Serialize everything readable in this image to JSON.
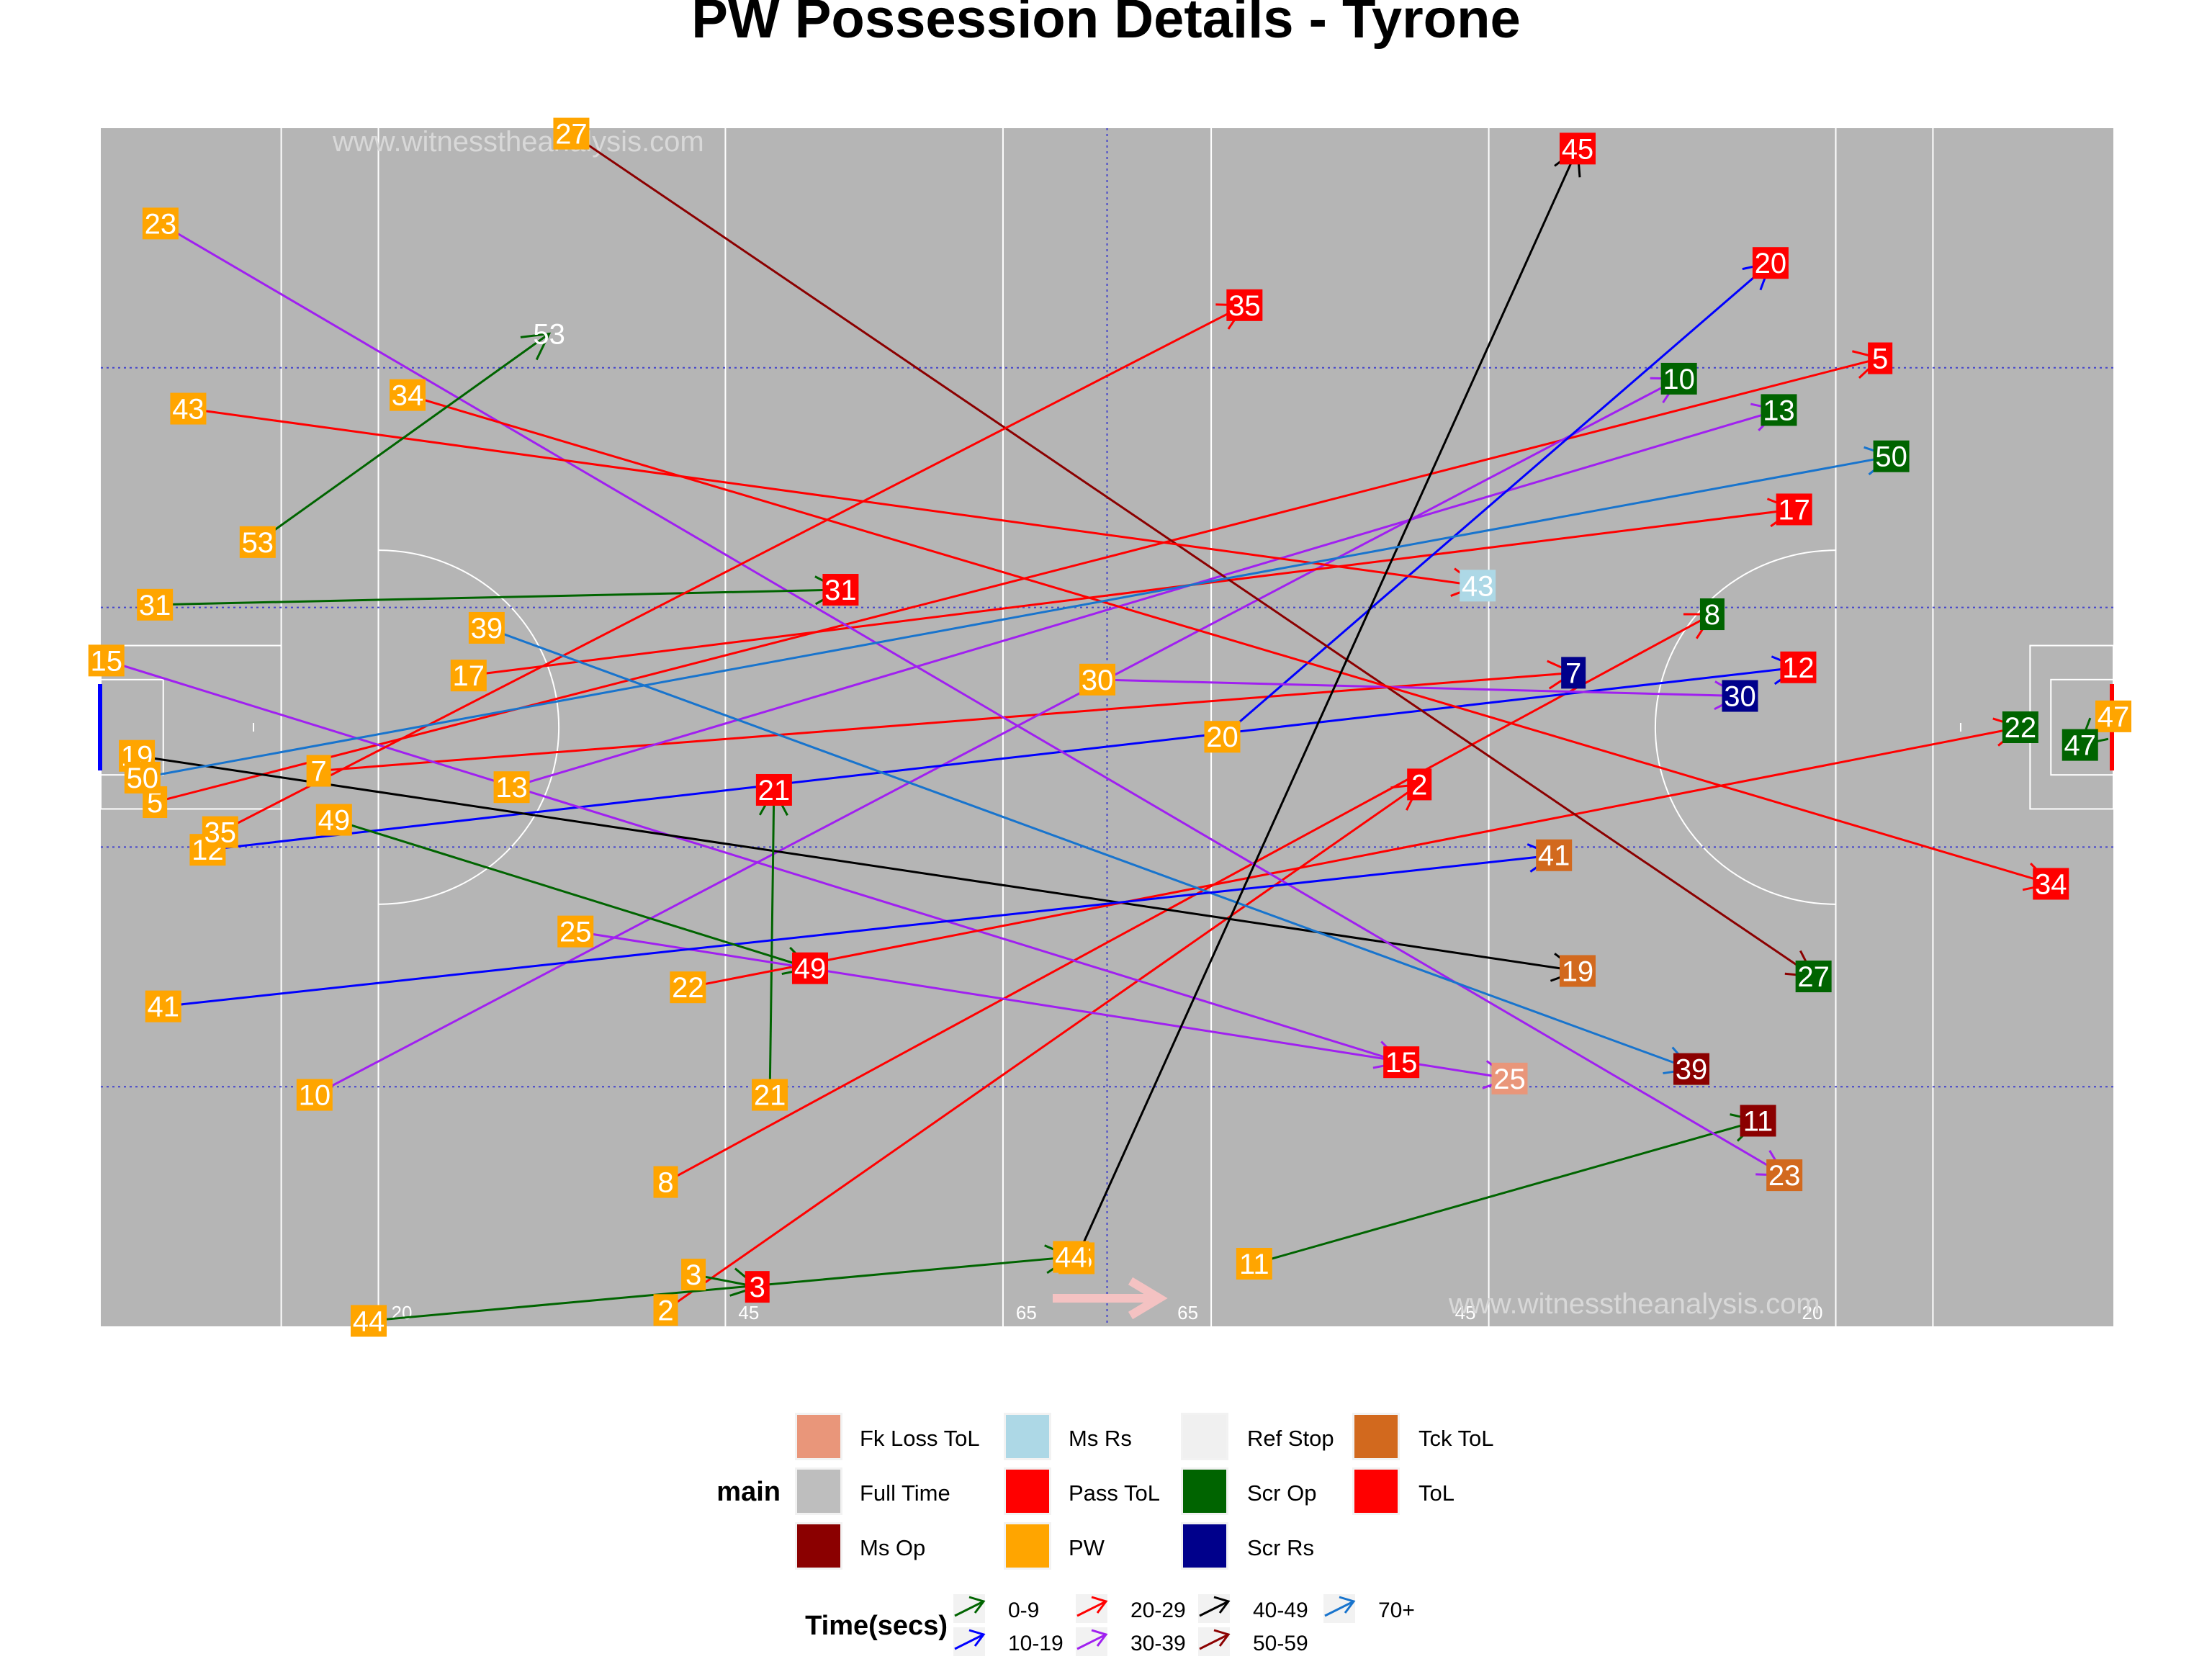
{
  "chart_data": {
    "type": "scatter",
    "title": "PW Possession Details - Tyrone",
    "watermark": "www.witnesstheanalysis.com",
    "pitch": {
      "xlim": [
        0,
        145
      ],
      "ylim": [
        0,
        88
      ],
      "line_labels": [
        "20",
        "45",
        "65",
        "65",
        "45",
        "20"
      ],
      "grid": true
    },
    "outcome_colors": {
      "Fk Loss ToL": "#E9967A",
      "Full Time": "#BEBEBE",
      "Ms Op": "#8B0000",
      "Ms Rs": "#ADD8E6",
      "Pass ToL": "#FF0000",
      "PW": "#FFA500",
      "Ref Stop": "#F0F0F0",
      "Scr Op": "#006400",
      "Scr Rs": "#00008B",
      "Tck ToL": "#D2691E",
      "ToL": "#FF0000"
    },
    "time_colors": {
      "0-9": "#006400",
      "10-19": "#0000FF",
      "20-29": "#FF0000",
      "30-39": "#A020F0",
      "40-49": "#000000",
      "50-59": "#8B0000",
      "70+": "#1874CD"
    },
    "legend_main": {
      "title": "main",
      "entries": [
        "Fk Loss ToL",
        "Full Time",
        "Ms Op",
        "Ms Rs",
        "Pass ToL",
        "PW",
        "Ref Stop",
        "Scr Op",
        "Scr Rs",
        "Tck ToL",
        "ToL"
      ]
    },
    "legend_time": {
      "title": "Time(secs)",
      "entries": [
        "0-9",
        "10-19",
        "20-29",
        "30-39",
        "40-49",
        "50-59",
        "70+"
      ]
    },
    "possessions": [
      {
        "id": "2",
        "start": [
          40.7,
          1.2
        ],
        "end": [
          95.0,
          39.8
        ],
        "time": "20-29",
        "outcome": "Pass ToL"
      },
      {
        "id": "3",
        "start": [
          42.7,
          3.8
        ],
        "end": [
          47.3,
          2.9
        ],
        "time": "0-9",
        "outcome": "ToL"
      },
      {
        "id": "5",
        "start": [
          3.9,
          38.5
        ],
        "end": [
          128.2,
          71.1
        ],
        "time": "20-29",
        "outcome": "Pass ToL"
      },
      {
        "id": "7",
        "start": [
          15.7,
          40.8
        ],
        "end": [
          106.1,
          48.0
        ],
        "time": "20-29",
        "outcome": "Scr Rs"
      },
      {
        "id": "8",
        "start": [
          40.7,
          10.6
        ],
        "end": [
          116.1,
          52.3
        ],
        "time": "20-29",
        "outcome": "Scr Op"
      },
      {
        "id": "10",
        "start": [
          15.4,
          17.0
        ],
        "end": [
          113.7,
          69.6
        ],
        "time": "30-39",
        "outcome": "Scr Op"
      },
      {
        "id": "11",
        "start": [
          83.1,
          4.6
        ],
        "end": [
          119.4,
          15.1
        ],
        "time": "0-9",
        "outcome": "Ms Op"
      },
      {
        "id": "12",
        "start": [
          7.7,
          35.0
        ],
        "end": [
          122.3,
          48.4
        ],
        "time": "10-19",
        "outcome": "ToL"
      },
      {
        "id": "13",
        "start": [
          29.6,
          39.6
        ],
        "end": [
          120.9,
          67.3
        ],
        "time": "30-39",
        "outcome": "Scr Op"
      },
      {
        "id": "15",
        "start": [
          0.4,
          48.9
        ],
        "end": [
          93.7,
          19.4
        ],
        "time": "30-39",
        "outcome": "ToL"
      },
      {
        "id": "17",
        "start": [
          26.5,
          47.8
        ],
        "end": [
          122.0,
          60.0
        ],
        "time": "20-29",
        "outcome": "Pass ToL"
      },
      {
        "id": "19",
        "start": [
          2.6,
          41.9
        ],
        "end": [
          106.4,
          26.1
        ],
        "time": "40-49",
        "outcome": "Tck ToL"
      },
      {
        "id": "20",
        "start": [
          80.8,
          43.3
        ],
        "end": [
          120.3,
          78.1
        ],
        "time": "10-19",
        "outcome": "Pass ToL"
      },
      {
        "id": "21",
        "start": [
          48.2,
          17.0
        ],
        "end": [
          48.5,
          39.4
        ],
        "time": "0-9",
        "outcome": "ToL"
      },
      {
        "id": "22",
        "start": [
          42.3,
          24.9
        ],
        "end": [
          138.3,
          44.0
        ],
        "time": "20-29",
        "outcome": "Scr Op"
      },
      {
        "id": "23",
        "start": [
          4.3,
          81.0
        ],
        "end": [
          121.3,
          11.1
        ],
        "time": "30-39",
        "outcome": "Tck ToL"
      },
      {
        "id": "25",
        "start": [
          34.2,
          29.0
        ],
        "end": [
          101.5,
          18.2
        ],
        "time": "30-39",
        "outcome": "Fk Loss ToL"
      },
      {
        "id": "27",
        "start": [
          33.9,
          87.6
        ],
        "end": [
          123.4,
          25.7
        ],
        "time": "50-59",
        "outcome": "Scr Op"
      },
      {
        "id": "30",
        "start": [
          71.8,
          47.5
        ],
        "end": [
          118.1,
          46.3
        ],
        "time": "30-39",
        "outcome": "Scr Rs"
      },
      {
        "id": "31",
        "start": [
          3.9,
          53.0
        ],
        "end": [
          53.3,
          54.1
        ],
        "time": "0-9",
        "outcome": "ToL"
      },
      {
        "id": "34",
        "start": [
          22.1,
          68.4
        ],
        "end": [
          140.5,
          32.5
        ],
        "time": "20-29",
        "outcome": "ToL"
      },
      {
        "id": "35",
        "start": [
          8.6,
          36.3
        ],
        "end": [
          82.4,
          75.0
        ],
        "time": "20-29",
        "outcome": "Pass ToL"
      },
      {
        "id": "39",
        "start": [
          27.8,
          51.3
        ],
        "end": [
          114.6,
          18.9
        ],
        "time": "70+",
        "outcome": "Ms Op"
      },
      {
        "id": "41",
        "start": [
          4.5,
          23.5
        ],
        "end": [
          104.7,
          34.6
        ],
        "time": "10-19",
        "outcome": "Tck ToL"
      },
      {
        "id": "43",
        "start": [
          6.3,
          67.4
        ],
        "end": [
          99.2,
          54.4
        ],
        "time": "20-29",
        "outcome": "Ms Rs"
      },
      {
        "id": "44",
        "start": [
          19.3,
          0.4
        ],
        "end": [
          69.9,
          5.1
        ],
        "time": "0-9",
        "outcome": "PW"
      },
      {
        "id": "45",
        "start": [
          70.3,
          5.0
        ],
        "end": [
          106.4,
          86.5
        ],
        "time": "40-49",
        "outcome": "ToL"
      },
      {
        "id": "47",
        "start": [
          145.0,
          44.8
        ],
        "end": [
          142.6,
          42.7
        ],
        "time": "0-9",
        "outcome": "Scr Op"
      },
      {
        "id": "49",
        "start": [
          16.8,
          37.2
        ],
        "end": [
          51.1,
          26.3
        ],
        "time": "0-9",
        "outcome": "ToL"
      },
      {
        "id": "50",
        "start": [
          3.0,
          40.3
        ],
        "end": [
          129.0,
          63.9
        ],
        "time": "70+",
        "outcome": "Scr Op"
      },
      {
        "id": "53",
        "start": [
          11.3,
          57.6
        ],
        "end": [
          32.3,
          72.9
        ],
        "time": "0-9",
        "outcome": "Ref Stop"
      }
    ]
  }
}
